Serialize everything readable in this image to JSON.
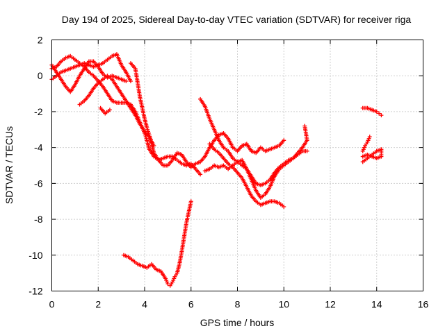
{
  "chart_data": {
    "type": "scatter",
    "title": "Day 194 of 2025, Sidereal Day-to-day VTEC variation (SDTVAR) for receiver riga",
    "xlabel": "GPS time / hours",
    "ylabel": "SDTVAR / TECUs",
    "xlim": [
      0,
      16
    ],
    "ylim": [
      -12,
      2
    ],
    "xticks": [
      0,
      2,
      4,
      6,
      8,
      10,
      12,
      14,
      16
    ],
    "yticks": [
      -12,
      -10,
      -8,
      -6,
      -4,
      -2,
      0,
      2
    ],
    "xtick_labels": [
      "0",
      "2",
      "4",
      "6",
      "8",
      "10",
      "12",
      "14",
      "16"
    ],
    "ytick_labels": [
      "-12",
      "-10",
      "-8",
      "-6",
      "-4",
      "-2",
      "0",
      "2"
    ],
    "grid": true,
    "legend": "none",
    "marker": "+",
    "color": "#ff0000",
    "series": [
      {
        "values": [
          [
            0.0,
            0.4
          ],
          [
            0.2,
            0.5
          ],
          [
            0.4,
            0.8
          ],
          [
            0.6,
            1.0
          ],
          [
            0.8,
            1.1
          ],
          [
            1.0,
            0.9
          ],
          [
            1.2,
            0.7
          ],
          [
            1.4,
            0.5
          ],
          [
            1.6,
            0.2
          ],
          [
            1.8,
            0.0
          ],
          [
            2.0,
            -0.3
          ],
          [
            2.2,
            -0.6
          ],
          [
            2.4,
            -1.0
          ],
          [
            2.6,
            -1.4
          ],
          [
            2.8,
            -1.5
          ],
          [
            3.0,
            -1.5
          ],
          [
            3.2,
            -1.5
          ],
          [
            3.4,
            -1.6
          ],
          [
            3.6,
            -2.0
          ],
          [
            3.8,
            -2.6
          ],
          [
            4.0,
            -3.2
          ],
          [
            4.1,
            -3.6
          ],
          [
            4.2,
            -4.1
          ],
          [
            4.4,
            -4.5
          ],
          [
            4.6,
            -4.7
          ],
          [
            4.8,
            -4.6
          ],
          [
            5.0,
            -4.5
          ],
          [
            5.2,
            -4.5
          ],
          [
            5.4,
            -4.7
          ],
          [
            5.6,
            -4.9
          ],
          [
            5.8,
            -5.0
          ],
          [
            6.0,
            -4.9
          ],
          [
            6.2,
            -5.2
          ],
          [
            6.4,
            -5.5
          ]
        ]
      },
      {
        "values": [
          [
            0.0,
            -0.2
          ],
          [
            0.2,
            0.0
          ],
          [
            0.4,
            0.2
          ],
          [
            0.6,
            0.3
          ],
          [
            0.8,
            0.4
          ],
          [
            1.0,
            0.5
          ],
          [
            1.2,
            0.6
          ],
          [
            1.4,
            0.7
          ],
          [
            1.6,
            0.6
          ],
          [
            1.8,
            0.5
          ],
          [
            2.0,
            0.6
          ],
          [
            2.2,
            0.7
          ],
          [
            2.4,
            0.9
          ],
          [
            2.6,
            1.1
          ],
          [
            2.8,
            1.2
          ],
          [
            3.0,
            0.6
          ],
          [
            3.2,
            0.2
          ],
          [
            3.4,
            -0.3
          ]
        ]
      },
      {
        "values": [
          [
            0.0,
            0.6
          ],
          [
            0.2,
            0.2
          ],
          [
            0.4,
            -0.2
          ],
          [
            0.6,
            -0.6
          ],
          [
            0.8,
            -0.9
          ],
          [
            1.0,
            -0.5
          ],
          [
            1.2,
            0.0
          ],
          [
            1.4,
            0.4
          ],
          [
            1.6,
            0.8
          ],
          [
            1.8,
            0.8
          ],
          [
            2.0,
            0.5
          ],
          [
            2.2,
            0.1
          ],
          [
            2.4,
            -0.1
          ],
          [
            2.6,
            0.0
          ],
          [
            2.8,
            -0.1
          ],
          [
            3.0,
            -0.2
          ],
          [
            3.2,
            -0.3
          ]
        ]
      },
      {
        "values": [
          [
            1.2,
            -1.6
          ],
          [
            1.4,
            -1.4
          ],
          [
            1.6,
            -1.1
          ],
          [
            1.8,
            -0.7
          ],
          [
            2.0,
            -0.4
          ],
          [
            2.2,
            -0.2
          ],
          [
            2.4,
            0.0
          ],
          [
            2.6,
            -0.2
          ],
          [
            2.8,
            -0.6
          ],
          [
            3.0,
            -1.0
          ],
          [
            3.2,
            -1.4
          ],
          [
            3.4,
            -1.8
          ],
          [
            3.6,
            -2.2
          ],
          [
            3.8,
            -2.7
          ],
          [
            4.0,
            -3.1
          ],
          [
            4.2,
            -3.4
          ],
          [
            4.4,
            -3.9
          ]
        ]
      },
      {
        "values": [
          [
            2.1,
            -1.8
          ],
          [
            2.3,
            -2.1
          ],
          [
            2.5,
            -1.9
          ]
        ]
      },
      {
        "values": [
          [
            3.4,
            0.7
          ],
          [
            3.6,
            0.4
          ],
          [
            3.7,
            -0.4
          ],
          [
            3.8,
            -1.2
          ],
          [
            3.9,
            -1.8
          ],
          [
            4.0,
            -2.4
          ],
          [
            4.1,
            -2.9
          ],
          [
            4.2,
            -3.3
          ],
          [
            4.3,
            -3.8
          ],
          [
            4.4,
            -4.3
          ],
          [
            4.6,
            -4.7
          ],
          [
            4.8,
            -5.0
          ],
          [
            5.0,
            -5.0
          ],
          [
            5.2,
            -4.7
          ],
          [
            5.4,
            -4.3
          ],
          [
            5.6,
            -4.4
          ],
          [
            5.8,
            -4.8
          ],
          [
            6.0,
            -5.1
          ],
          [
            6.2,
            -4.9
          ],
          [
            6.4,
            -4.8
          ],
          [
            6.6,
            -4.5
          ],
          [
            6.8,
            -4.0
          ],
          [
            7.0,
            -3.6
          ],
          [
            7.2,
            -3.3
          ],
          [
            7.4,
            -3.2
          ],
          [
            7.6,
            -3.5
          ],
          [
            7.8,
            -4.0
          ],
          [
            8.0,
            -4.2
          ],
          [
            8.2,
            -3.9
          ],
          [
            8.4,
            -3.8
          ],
          [
            8.6,
            -4.2
          ],
          [
            8.8,
            -4.3
          ],
          [
            9.0,
            -4.0
          ],
          [
            9.2,
            -4.2
          ],
          [
            9.4,
            -4.1
          ],
          [
            9.6,
            -4.0
          ],
          [
            9.8,
            -3.9
          ],
          [
            10.0,
            -3.6
          ]
        ]
      },
      {
        "values": [
          [
            6.4,
            -1.3
          ],
          [
            6.6,
            -1.7
          ],
          [
            6.8,
            -2.4
          ],
          [
            7.0,
            -3.0
          ],
          [
            7.2,
            -3.6
          ],
          [
            7.4,
            -4.0
          ],
          [
            7.6,
            -4.2
          ],
          [
            7.8,
            -4.6
          ],
          [
            8.0,
            -4.8
          ],
          [
            8.2,
            -5.0
          ],
          [
            8.4,
            -5.2
          ],
          [
            8.6,
            -5.6
          ],
          [
            8.8,
            -6.0
          ],
          [
            9.0,
            -6.1
          ],
          [
            9.2,
            -6.0
          ],
          [
            9.4,
            -5.8
          ],
          [
            9.6,
            -5.4
          ],
          [
            9.8,
            -5.1
          ],
          [
            10.0,
            -4.9
          ],
          [
            10.2,
            -4.7
          ],
          [
            10.4,
            -4.6
          ],
          [
            10.6,
            -4.3
          ],
          [
            10.8,
            -4.0
          ],
          [
            11.0,
            -3.6
          ],
          [
            10.9,
            -2.8
          ]
        ]
      },
      {
        "values": [
          [
            6.8,
            -3.8
          ],
          [
            7.0,
            -4.1
          ],
          [
            7.2,
            -4.3
          ],
          [
            7.4,
            -4.6
          ],
          [
            7.6,
            -4.9
          ],
          [
            7.8,
            -5.1
          ],
          [
            8.0,
            -5.4
          ],
          [
            8.2,
            -5.7
          ],
          [
            8.4,
            -6.2
          ],
          [
            8.6,
            -6.7
          ],
          [
            8.8,
            -7.0
          ],
          [
            9.0,
            -7.2
          ],
          [
            9.2,
            -7.1
          ],
          [
            9.4,
            -7.0
          ],
          [
            9.6,
            -7.0
          ],
          [
            9.8,
            -7.1
          ],
          [
            10.0,
            -7.3
          ]
        ]
      },
      {
        "values": [
          [
            6.6,
            -5.3
          ],
          [
            6.8,
            -5.2
          ],
          [
            7.0,
            -5.0
          ],
          [
            7.2,
            -5.1
          ],
          [
            7.4,
            -5.0
          ],
          [
            7.6,
            -5.2
          ],
          [
            7.8,
            -5.0
          ],
          [
            8.0,
            -4.8
          ],
          [
            8.2,
            -4.7
          ],
          [
            8.4,
            -5.2
          ],
          [
            8.6,
            -5.8
          ],
          [
            8.8,
            -6.4
          ],
          [
            9.0,
            -6.8
          ],
          [
            9.2,
            -6.6
          ],
          [
            9.4,
            -6.2
          ],
          [
            9.6,
            -5.6
          ],
          [
            9.8,
            -5.2
          ],
          [
            10.0,
            -5.0
          ],
          [
            10.2,
            -4.8
          ],
          [
            10.4,
            -4.6
          ],
          [
            10.6,
            -4.4
          ],
          [
            10.8,
            -4.2
          ],
          [
            11.0,
            -4.2
          ]
        ]
      },
      {
        "values": [
          [
            3.1,
            -10.0
          ],
          [
            3.3,
            -10.1
          ],
          [
            3.5,
            -10.3
          ],
          [
            3.7,
            -10.5
          ],
          [
            3.9,
            -10.6
          ],
          [
            4.1,
            -10.7
          ],
          [
            4.3,
            -10.5
          ],
          [
            4.5,
            -10.8
          ],
          [
            4.7,
            -10.9
          ],
          [
            4.9,
            -11.3
          ],
          [
            5.0,
            -11.6
          ],
          [
            5.1,
            -11.7
          ],
          [
            5.2,
            -11.5
          ],
          [
            5.3,
            -11.2
          ],
          [
            5.4,
            -11.0
          ],
          [
            5.5,
            -10.5
          ],
          [
            5.6,
            -9.8
          ],
          [
            5.7,
            -9.0
          ],
          [
            5.8,
            -8.2
          ],
          [
            5.9,
            -7.6
          ],
          [
            6.0,
            -7.0
          ]
        ]
      },
      {
        "values": [
          [
            13.4,
            -1.8
          ],
          [
            13.6,
            -1.8
          ],
          [
            13.8,
            -1.9
          ],
          [
            14.0,
            -2.0
          ],
          [
            14.1,
            -2.1
          ],
          [
            14.2,
            -2.2
          ]
        ]
      },
      {
        "values": [
          [
            13.4,
            -4.2
          ],
          [
            13.5,
            -3.9
          ],
          [
            13.6,
            -3.7
          ],
          [
            13.7,
            -3.4
          ]
        ]
      },
      {
        "values": [
          [
            13.4,
            -4.8
          ],
          [
            13.6,
            -4.6
          ],
          [
            13.8,
            -4.4
          ],
          [
            14.0,
            -4.2
          ],
          [
            14.2,
            -4.1
          ],
          [
            14.2,
            -4.5
          ],
          [
            14.0,
            -4.6
          ],
          [
            13.8,
            -4.5
          ],
          [
            13.6,
            -4.4
          ],
          [
            13.4,
            -4.5
          ]
        ]
      }
    ]
  }
}
